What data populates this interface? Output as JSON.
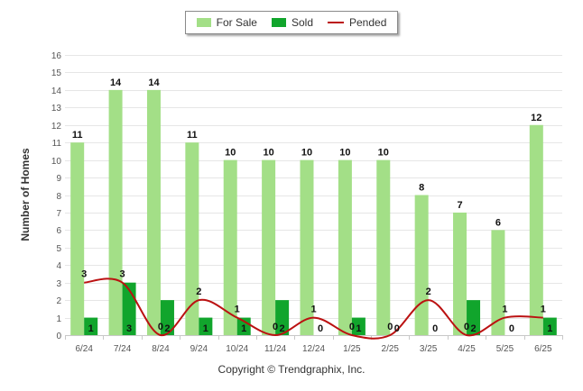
{
  "chart_data": {
    "type": "bar",
    "ylabel": "Number of Homes",
    "ylim": [
      0,
      16
    ],
    "yticks": [
      0,
      1,
      2,
      3,
      4,
      5,
      6,
      7,
      8,
      9,
      10,
      11,
      12,
      13,
      14,
      15,
      16
    ],
    "categories": [
      "6/24",
      "7/24",
      "8/24",
      "9/24",
      "10/24",
      "11/24",
      "12/24",
      "1/25",
      "2/25",
      "3/25",
      "4/25",
      "5/25",
      "6/25"
    ],
    "series": [
      {
        "name": "For Sale",
        "kind": "bar",
        "color": "#a3df87",
        "values": [
          11,
          14,
          14,
          11,
          10,
          10,
          10,
          10,
          10,
          8,
          7,
          6,
          12
        ]
      },
      {
        "name": "Sold",
        "kind": "bar",
        "color": "#11a52c",
        "values": [
          1,
          3,
          2,
          1,
          1,
          2,
          0,
          1,
          0,
          0,
          2,
          0,
          1
        ]
      },
      {
        "name": "Pended",
        "kind": "line",
        "color": "#bb1111",
        "values": [
          3,
          3,
          0,
          2,
          1,
          0,
          1,
          0,
          0,
          2,
          0,
          1,
          1
        ]
      }
    ],
    "legend": "top-center",
    "grid": true
  },
  "footer": {
    "copyright": "Copyright © Trendgraphix, Inc."
  }
}
